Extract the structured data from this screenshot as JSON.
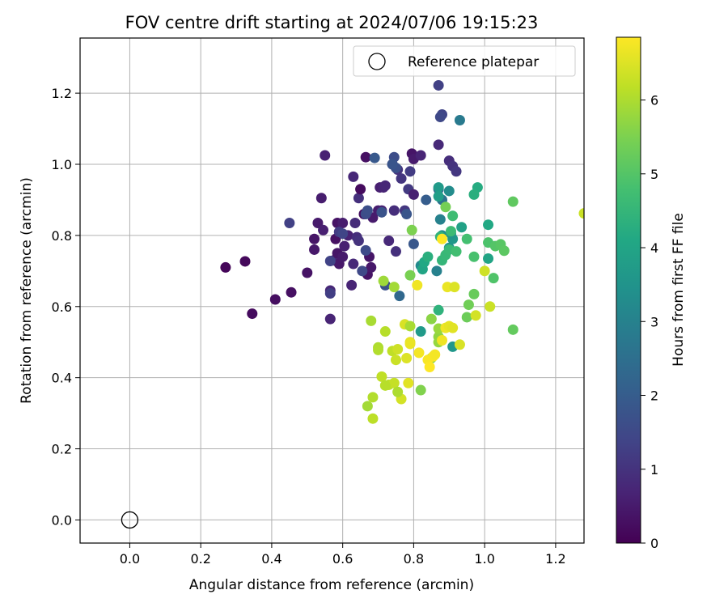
{
  "chart_data": {
    "type": "scatter",
    "title": "FOV centre drift starting at 2024/07/06 19:15:23",
    "xlabel": "Angular distance from reference (arcmin)",
    "ylabel": "Rotation from reference (arcmin)",
    "xlim": [
      -0.14,
      1.28
    ],
    "ylim": [
      -0.065,
      1.355
    ],
    "xticks": [
      0.0,
      0.2,
      0.4,
      0.6,
      0.8,
      1.0,
      1.2
    ],
    "xtick_labels": [
      "0.0",
      "0.2",
      "0.4",
      "0.6",
      "0.8",
      "1.0",
      "1.2"
    ],
    "yticks": [
      0.0,
      0.2,
      0.4,
      0.6,
      0.8,
      1.0,
      1.2
    ],
    "ytick_labels": [
      "0.0",
      "0.2",
      "0.4",
      "0.6",
      "0.8",
      "1.0",
      "1.2"
    ],
    "grid": true,
    "legend": {
      "position": "top-right",
      "entries": [
        "Reference platepar"
      ]
    },
    "reference_point": {
      "x": 0.0,
      "y": 0.0,
      "label": "Reference platepar"
    },
    "colorbar": {
      "label": "Hours from first FF file",
      "range": [
        0,
        6.85
      ],
      "ticks": [
        0,
        1,
        2,
        3,
        4,
        5,
        6
      ],
      "tick_labels": [
        "0",
        "1",
        "2",
        "3",
        "4",
        "5",
        "6"
      ],
      "colormap": "viridis"
    },
    "points": [
      [
        0.27,
        0.71,
        0.1
      ],
      [
        0.325,
        0.727,
        0.15
      ],
      [
        0.345,
        0.58,
        0.2
      ],
      [
        0.41,
        0.62,
        0.25
      ],
      [
        0.455,
        0.64,
        0.3
      ],
      [
        0.5,
        0.695,
        0.35
      ],
      [
        0.52,
        0.79,
        0.4
      ],
      [
        0.52,
        0.76,
        0.45
      ],
      [
        0.53,
        0.835,
        0.5
      ],
      [
        0.54,
        0.905,
        0.55
      ],
      [
        0.545,
        0.815,
        0.6
      ],
      [
        0.55,
        1.025,
        0.65
      ],
      [
        0.565,
        0.565,
        0.7
      ],
      [
        0.565,
        0.645,
        0.75
      ],
      [
        0.575,
        0.73,
        0.8
      ],
      [
        0.58,
        0.79,
        0.3
      ],
      [
        0.585,
        0.835,
        0.35
      ],
      [
        0.585,
        0.75,
        0.4
      ],
      [
        0.59,
        0.72,
        0.45
      ],
      [
        0.6,
        0.74,
        0.5
      ],
      [
        0.6,
        0.835,
        0.55
      ],
      [
        0.605,
        0.77,
        0.6
      ],
      [
        0.615,
        0.8,
        0.65
      ],
      [
        0.625,
        0.66,
        0.7
      ],
      [
        0.63,
        0.965,
        0.75
      ],
      [
        0.63,
        0.72,
        0.8
      ],
      [
        0.635,
        0.835,
        0.85
      ],
      [
        0.64,
        0.795,
        0.9
      ],
      [
        0.645,
        0.905,
        0.95
      ],
      [
        0.645,
        0.785,
        1.0
      ],
      [
        0.65,
        0.93,
        0.2
      ],
      [
        0.66,
        0.86,
        0.25
      ],
      [
        0.665,
        1.02,
        0.3
      ],
      [
        0.67,
        0.69,
        0.35
      ],
      [
        0.675,
        0.74,
        0.4
      ],
      [
        0.68,
        0.71,
        0.45
      ],
      [
        0.685,
        0.85,
        0.5
      ],
      [
        0.7,
        0.87,
        0.55
      ],
      [
        0.705,
        0.935,
        0.6
      ],
      [
        0.71,
        0.87,
        0.65
      ],
      [
        0.715,
        0.935,
        0.7
      ],
      [
        0.72,
        0.94,
        0.75
      ],
      [
        0.73,
        0.785,
        0.8
      ],
      [
        0.74,
        1.0,
        0.85
      ],
      [
        0.745,
        0.87,
        0.9
      ],
      [
        0.75,
        0.755,
        0.95
      ],
      [
        0.755,
        0.985,
        1.0
      ],
      [
        0.765,
        0.96,
        1.05
      ],
      [
        0.775,
        0.87,
        1.1
      ],
      [
        0.785,
        0.93,
        1.15
      ],
      [
        0.79,
        0.98,
        1.2
      ],
      [
        0.795,
        1.03,
        0.4
      ],
      [
        0.8,
        1.015,
        0.5
      ],
      [
        0.8,
        0.915,
        0.6
      ],
      [
        0.82,
        1.025,
        0.7
      ],
      [
        0.87,
        1.055,
        0.8
      ],
      [
        0.9,
        1.01,
        0.9
      ],
      [
        0.91,
        0.995,
        1.0
      ],
      [
        0.92,
        0.98,
        1.1
      ],
      [
        0.59,
        0.81,
        1.2
      ],
      [
        0.565,
        0.637,
        1.25
      ],
      [
        0.45,
        0.835,
        1.3
      ],
      [
        0.565,
        0.728,
        1.35
      ],
      [
        0.6,
        0.805,
        1.4
      ],
      [
        0.655,
        0.7,
        1.5
      ],
      [
        0.665,
        0.758,
        1.55
      ],
      [
        0.665,
        0.86,
        1.6
      ],
      [
        0.67,
        0.87,
        1.65
      ],
      [
        0.72,
        0.66,
        1.7
      ],
      [
        0.71,
        0.865,
        1.75
      ],
      [
        0.78,
        0.86,
        1.8
      ],
      [
        0.8,
        0.776,
        1.85
      ],
      [
        0.87,
        1.222,
        1.3
      ],
      [
        0.88,
        1.14,
        1.4
      ],
      [
        0.875,
        1.133,
        1.5
      ],
      [
        0.745,
        1.02,
        1.6
      ],
      [
        0.75,
        0.99,
        1.7
      ],
      [
        0.74,
        1.0,
        1.8
      ],
      [
        0.69,
        1.018,
        1.9
      ],
      [
        0.835,
        0.9,
        2.0
      ],
      [
        0.87,
        0.93,
        2.2
      ],
      [
        0.76,
        0.63,
        2.3
      ],
      [
        0.88,
        0.9,
        2.6
      ],
      [
        0.93,
        1.124,
        2.8
      ],
      [
        0.865,
        0.7,
        3.0
      ],
      [
        0.82,
        0.715,
        3.2
      ],
      [
        0.88,
        0.8,
        3.4
      ],
      [
        0.9,
        0.765,
        3.5
      ],
      [
        0.91,
        0.79,
        3.6
      ],
      [
        0.87,
        0.935,
        3.7
      ],
      [
        0.87,
        0.91,
        3.8
      ],
      [
        0.935,
        0.823,
        3.9
      ],
      [
        1.01,
        0.735,
        4.0
      ],
      [
        1.01,
        0.83,
        4.1
      ],
      [
        0.98,
        0.935,
        4.2
      ],
      [
        0.97,
        0.915,
        4.3
      ],
      [
        0.9,
        0.925,
        3.3
      ],
      [
        0.875,
        0.845,
        3.0
      ],
      [
        0.905,
        0.805,
        3.5
      ],
      [
        0.91,
        0.487,
        3.6
      ],
      [
        0.82,
        0.53,
        3.7
      ],
      [
        0.825,
        0.705,
        4.0
      ],
      [
        0.83,
        0.725,
        4.1
      ],
      [
        0.84,
        0.74,
        4.3
      ],
      [
        0.87,
        0.59,
        4.4
      ],
      [
        0.875,
        0.796,
        4.45
      ],
      [
        0.88,
        0.73,
        4.5
      ],
      [
        0.89,
        0.745,
        4.55
      ],
      [
        0.9,
        0.76,
        4.6
      ],
      [
        0.905,
        0.812,
        4.65
      ],
      [
        0.91,
        0.855,
        4.7
      ],
      [
        0.92,
        0.755,
        4.75
      ],
      [
        0.95,
        0.79,
        4.8
      ],
      [
        0.97,
        0.74,
        4.85
      ],
      [
        1.01,
        0.78,
        4.9
      ],
      [
        1.025,
        0.68,
        4.95
      ],
      [
        1.03,
        0.77,
        5.0
      ],
      [
        1.045,
        0.775,
        5.05
      ],
      [
        1.055,
        0.757,
        5.1
      ],
      [
        1.08,
        0.895,
        5.15
      ],
      [
        1.08,
        0.535,
        5.2
      ],
      [
        0.97,
        0.635,
        5.25
      ],
      [
        0.95,
        0.57,
        5.3
      ],
      [
        0.955,
        0.605,
        5.35
      ],
      [
        0.89,
        0.88,
        5.4
      ],
      [
        0.79,
        0.688,
        5.45
      ],
      [
        0.795,
        0.815,
        5.5
      ],
      [
        0.82,
        0.365,
        5.55
      ],
      [
        0.85,
        0.455,
        5.6
      ],
      [
        0.85,
        0.565,
        5.65
      ],
      [
        0.87,
        0.515,
        5.7
      ],
      [
        0.87,
        0.5,
        5.75
      ],
      [
        0.87,
        0.538,
        5.8
      ],
      [
        0.715,
        0.672,
        5.85
      ],
      [
        0.745,
        0.655,
        5.9
      ],
      [
        0.68,
        0.56,
        5.95
      ],
      [
        0.7,
        0.485,
        6.0
      ],
      [
        0.7,
        0.478,
        6.05
      ],
      [
        0.72,
        0.53,
        6.1
      ],
      [
        0.73,
        0.38,
        6.15
      ],
      [
        0.74,
        0.475,
        6.2
      ],
      [
        0.745,
        0.385,
        6.25
      ],
      [
        0.75,
        0.45,
        6.3
      ],
      [
        0.755,
        0.48,
        6.35
      ],
      [
        0.765,
        0.34,
        6.4
      ],
      [
        0.775,
        0.55,
        6.45
      ],
      [
        0.78,
        0.455,
        6.5
      ],
      [
        0.785,
        0.385,
        6.55
      ],
      [
        0.79,
        0.5,
        6.6
      ],
      [
        0.79,
        0.495,
        6.65
      ],
      [
        0.81,
        0.66,
        6.7
      ],
      [
        0.815,
        0.47,
        6.75
      ],
      [
        0.84,
        0.45,
        6.8
      ],
      [
        0.845,
        0.43,
        6.85
      ],
      [
        0.855,
        0.46,
        6.8
      ],
      [
        0.86,
        0.465,
        6.75
      ],
      [
        0.88,
        0.505,
        6.7
      ],
      [
        0.88,
        0.79,
        6.85
      ],
      [
        0.89,
        0.54,
        6.7
      ],
      [
        0.895,
        0.655,
        6.65
      ],
      [
        0.9,
        0.545,
        6.6
      ],
      [
        0.91,
        0.54,
        6.55
      ],
      [
        0.915,
        0.655,
        6.5
      ],
      [
        0.93,
        0.493,
        6.45
      ],
      [
        0.975,
        0.575,
        6.4
      ],
      [
        1.0,
        0.7,
        6.35
      ],
      [
        1.015,
        0.6,
        6.3
      ],
      [
        0.71,
        0.403,
        6.2
      ],
      [
        0.72,
        0.378,
        6.1
      ],
      [
        0.755,
        0.36,
        6.0
      ],
      [
        0.67,
        0.32,
        5.9
      ],
      [
        0.685,
        0.345,
        6.05
      ],
      [
        0.685,
        0.285,
        6.15
      ],
      [
        1.28,
        0.862,
        6.3
      ],
      [
        0.79,
        0.545,
        5.95
      ]
    ]
  }
}
